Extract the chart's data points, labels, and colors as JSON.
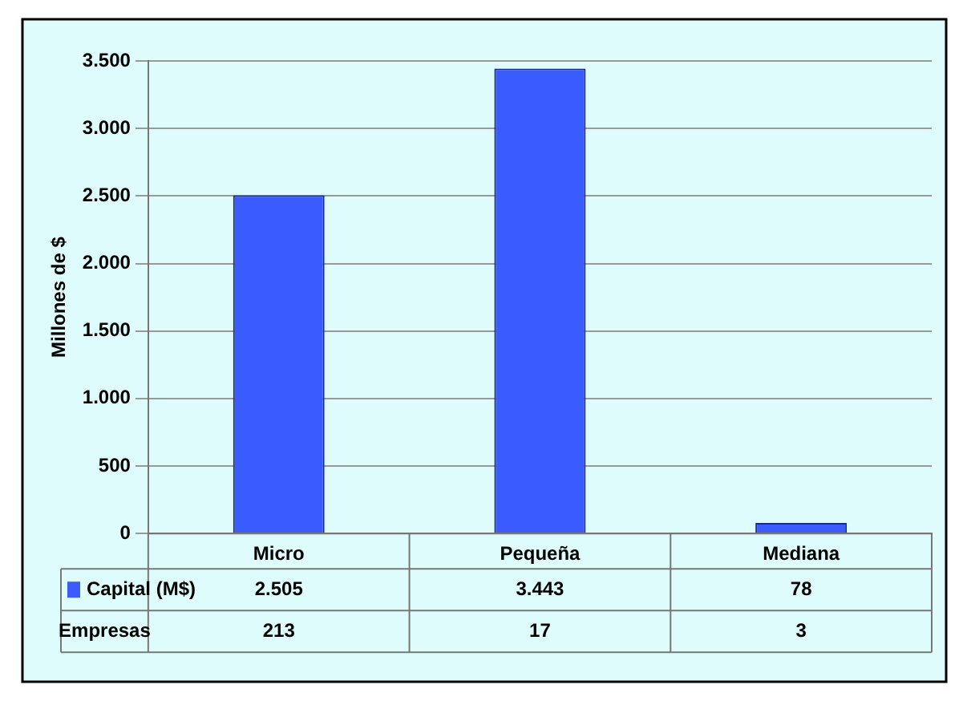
{
  "chart_data": {
    "type": "bar",
    "ylabel": "Millones de $",
    "categories": [
      "Micro",
      "Pequeña",
      "Mediana"
    ],
    "series": [
      {
        "name": "Capital (M$)",
        "color": "#3a5cff",
        "values": [
          2505,
          3443,
          78
        ],
        "value_labels": [
          "2.505",
          "3.443",
          "78"
        ]
      }
    ],
    "ylim": [
      0,
      3500
    ],
    "yticks": [
      {
        "value": 0,
        "label": "0"
      },
      {
        "value": 500,
        "label": "500"
      },
      {
        "value": 1000,
        "label": "1.000"
      },
      {
        "value": 1500,
        "label": "1.500"
      },
      {
        "value": 2000,
        "label": "2.000"
      },
      {
        "value": 2500,
        "label": "2.500"
      },
      {
        "value": 3000,
        "label": "3.000"
      },
      {
        "value": 3500,
        "label": "3.500"
      }
    ],
    "grid": "y",
    "legend": "bottom",
    "annotations": [
      "Empresas",
      "213",
      "17",
      "3"
    ]
  }
}
